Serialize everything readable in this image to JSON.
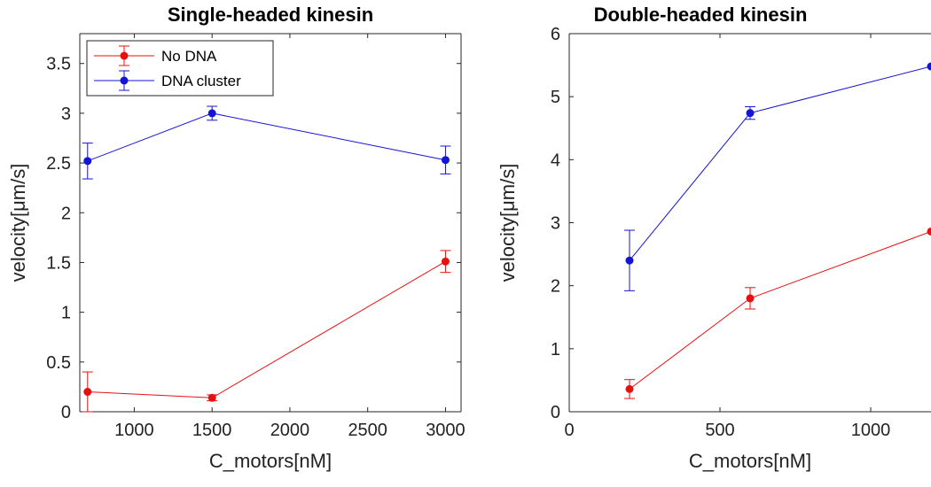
{
  "chart_data": [
    {
      "type": "line",
      "title": "Single-headed kinesin",
      "xlabel": "C_motors[nM]",
      "ylabel": "velocity[μm/s]",
      "xlim": [
        650,
        3100
      ],
      "ylim": [
        0,
        3.8
      ],
      "x_ticks": [
        1000,
        1500,
        2000,
        2500,
        3000
      ],
      "y_ticks": [
        0,
        0.5,
        1,
        1.5,
        2,
        2.5,
        3,
        3.5
      ],
      "x_tick_labels": [
        "1000",
        "1500",
        "2000",
        "2500",
        "3000"
      ],
      "y_tick_labels": [
        "0",
        "0.5",
        "1",
        "1.5",
        "2",
        "2.5",
        "3",
        "3.5"
      ],
      "legend_position": "top-left",
      "series": [
        {
          "name": "No DNA",
          "color": "#e8100f",
          "x": [
            700,
            1500,
            3000
          ],
          "y": [
            0.2,
            0.14,
            1.51
          ],
          "err": [
            0.2,
            0.03,
            0.11
          ]
        },
        {
          "name": "DNA cluster",
          "color": "#1414d4",
          "x": [
            700,
            1500,
            3000
          ],
          "y": [
            2.52,
            3.0,
            2.53
          ],
          "err": [
            0.18,
            0.07,
            0.14
          ]
        }
      ]
    },
    {
      "type": "line",
      "title": "Double-headed kinesin",
      "xlabel": "C_motors[nM]",
      "ylabel": "velocity[μm/s]",
      "xlim": [
        0,
        1200
      ],
      "ylim": [
        0,
        6
      ],
      "x_ticks": [
        0,
        500,
        1000
      ],
      "y_ticks": [
        0,
        1,
        2,
        3,
        4,
        5,
        6
      ],
      "x_tick_labels": [
        "0",
        "500",
        "1000"
      ],
      "y_tick_labels": [
        "0",
        "1",
        "2",
        "3",
        "4",
        "5",
        "6"
      ],
      "series": [
        {
          "name": "No DNA",
          "color": "#e8100f",
          "x": [
            200,
            600,
            1200
          ],
          "y": [
            0.36,
            1.8,
            2.86
          ],
          "err": [
            0.15,
            0.17,
            0
          ]
        },
        {
          "name": "DNA cluster",
          "color": "#1414d4",
          "x": [
            200,
            600,
            1200
          ],
          "y": [
            2.4,
            4.74,
            5.48
          ],
          "err": [
            0.48,
            0.1,
            0
          ]
        }
      ]
    }
  ]
}
